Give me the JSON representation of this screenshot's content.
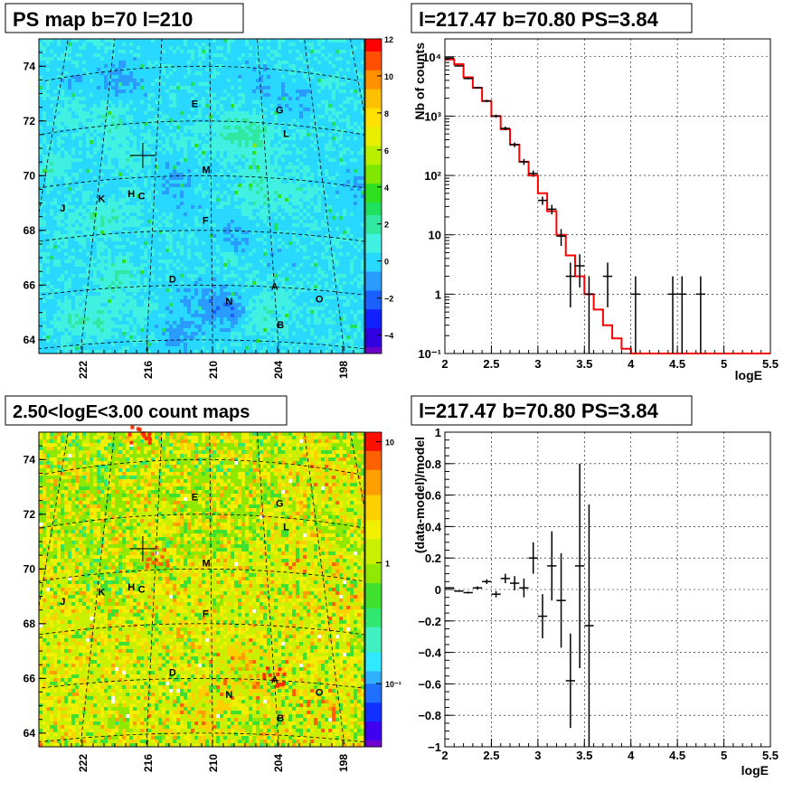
{
  "panels": {
    "ps_map": {
      "title": "PS map b=70 l=210",
      "ytick_labels": [
        "64",
        "66",
        "68",
        "70",
        "72",
        "74"
      ],
      "xtick_labels": [
        "222",
        "216",
        "210",
        "204",
        "198"
      ],
      "colorbar_labels": [
        "12",
        "10",
        "8",
        "6",
        "4",
        "2",
        "0",
        "−2",
        "−4"
      ],
      "colorbar_range": [
        -5,
        12
      ]
    },
    "count_map": {
      "title": "2.50<logE<3.00 count maps",
      "ytick_labels": [
        "64",
        "66",
        "68",
        "70",
        "72",
        "74"
      ],
      "xtick_labels": [
        "222",
        "216",
        "210",
        "204",
        "198"
      ],
      "colorbar_labels": [
        "10",
        "1",
        "10⁻¹"
      ]
    },
    "spectrum": {
      "title": "l=217.47 b=70.80 PS=3.84",
      "ylabel": "Nb of counts",
      "xlabel": "logE",
      "xtick_labels": [
        "2",
        "2.5",
        "3",
        "3.5",
        "4",
        "4.5",
        "5",
        "5.5"
      ],
      "ytick_labels": [
        "10⁻¹",
        "1",
        "10",
        "10²",
        "10³",
        "10⁴"
      ]
    },
    "residual": {
      "title": "l=217.47 b=70.80 PS=3.84",
      "ylabel": "(data-model)/model",
      "xlabel": "logE",
      "xtick_labels": [
        "2",
        "2.5",
        "3",
        "3.5",
        "4",
        "4.5",
        "5",
        "5.5"
      ],
      "ytick_labels": [
        "1",
        "0.8",
        "0.6",
        "0.4",
        "0.2",
        "0",
        "−0.2",
        "−0.4",
        "−0.6",
        "−0.8",
        "−1"
      ]
    }
  },
  "map_source_labels": [
    {
      "text": "E",
      "l": 211.8,
      "b": 72.5
    },
    {
      "text": "G",
      "l": 202.0,
      "b": 72.4
    },
    {
      "text": "L",
      "l": 201.5,
      "b": 71.55
    },
    {
      "text": "M",
      "l": 210.5,
      "b": 70.1
    },
    {
      "text": "J",
      "l": 225.5,
      "b": 69.0
    },
    {
      "text": "K",
      "l": 221.5,
      "b": 69.2
    },
    {
      "text": "H",
      "l": 218.4,
      "b": 69.3
    },
    {
      "text": "C",
      "l": 217.3,
      "b": 69.2
    },
    {
      "text": "F",
      "l": 210.6,
      "b": 68.25
    },
    {
      "text": "D",
      "l": 213.8,
      "b": 66.1
    },
    {
      "text": "A",
      "l": 204.0,
      "b": 65.9
    },
    {
      "text": "O",
      "l": 199.8,
      "b": 65.55
    },
    {
      "text": "N",
      "l": 208.4,
      "b": 65.3
    },
    {
      "text": "B",
      "l": 203.7,
      "b": 64.5
    }
  ],
  "chart_data": [
    {
      "type": "heatmap",
      "title": "PS map b=70 l=210",
      "description_units": "galactic longitude (deg) vs latitude (deg)",
      "xlim": [
        226,
        196
      ],
      "ylim": [
        63.5,
        75
      ],
      "zlim": [
        -5,
        12
      ],
      "marker": {
        "l": 217.47,
        "b": 70.8
      }
    },
    {
      "type": "heatmap",
      "title": "2.50<logE<3.00 count maps",
      "xlim": [
        226,
        196
      ],
      "ylim": [
        63.5,
        75
      ],
      "zlim": [
        0.03,
        12
      ],
      "zscale": "log",
      "marker": {
        "l": 217.47,
        "b": 70.8
      }
    },
    {
      "type": "line",
      "title": "l=217.47 b=70.80 PS=3.84",
      "xlabel": "logE",
      "ylabel": "Nb of counts",
      "xlim": [
        2,
        5.5
      ],
      "ylim": [
        0.1,
        20000
      ],
      "yscale": "log",
      "grid": true,
      "model_color": "#ff0000",
      "model_bin_width": 0.1,
      "model_bin_start": 2.0,
      "model": [
        9000,
        7500,
        4500,
        3000,
        1800,
        1000,
        600,
        330,
        170,
        100,
        50,
        25,
        10,
        4.5,
        2,
        1,
        0.55,
        0.3,
        0.18,
        0.12,
        0.1,
        0.1,
        0.1,
        0.1,
        0.1,
        0.1,
        0.1,
        0.1,
        0.1,
        0.1,
        0.1,
        0.1,
        0.1,
        0.1,
        0.1
      ],
      "data": [
        {
          "x": 2.05,
          "y": 9500,
          "lo": 9300,
          "hi": 9700
        },
        {
          "x": 2.15,
          "y": 7000,
          "lo": 6850,
          "hi": 7150
        },
        {
          "x": 2.25,
          "y": 4300,
          "lo": 4170,
          "hi": 4430
        },
        {
          "x": 2.35,
          "y": 3000,
          "lo": 2900,
          "hi": 3100
        },
        {
          "x": 2.45,
          "y": 1800,
          "lo": 1720,
          "hi": 1880
        },
        {
          "x": 2.55,
          "y": 1000,
          "lo": 940,
          "hi": 1060
        },
        {
          "x": 2.65,
          "y": 620,
          "lo": 575,
          "hi": 665
        },
        {
          "x": 2.75,
          "y": 330,
          "lo": 300,
          "hi": 360
        },
        {
          "x": 2.85,
          "y": 170,
          "lo": 150,
          "hi": 190
        },
        {
          "x": 2.95,
          "y": 108,
          "lo": 95,
          "hi": 121
        },
        {
          "x": 3.05,
          "y": 38,
          "lo": 32,
          "hi": 44
        },
        {
          "x": 3.15,
          "y": 27,
          "lo": 22,
          "hi": 32
        },
        {
          "x": 3.25,
          "y": 9.5,
          "lo": 6.5,
          "hi": 12.5
        },
        {
          "x": 3.35,
          "y": 2,
          "lo": 0.6,
          "hi": 3.4
        },
        {
          "x": 3.45,
          "y": 3,
          "lo": 1.3,
          "hi": 4.7
        },
        {
          "x": 3.55,
          "y": 1,
          "lo": 0.1,
          "hi": 2
        },
        {
          "x": 3.75,
          "y": 2,
          "lo": 0.6,
          "hi": 3.4
        },
        {
          "x": 4.05,
          "y": 1,
          "lo": 0.1,
          "hi": 2
        },
        {
          "x": 4.45,
          "y": 1,
          "lo": 0.1,
          "hi": 2
        },
        {
          "x": 4.55,
          "y": 1,
          "lo": 0.1,
          "hi": 2
        },
        {
          "x": 4.75,
          "y": 1,
          "lo": 0.1,
          "hi": 2
        }
      ]
    },
    {
      "type": "scatter",
      "title": "l=217.47 b=70.80 PS=3.84",
      "xlabel": "logE",
      "ylabel": "(data-model)/model",
      "xlim": [
        2,
        5.5
      ],
      "ylim": [
        -1,
        1
      ],
      "grid": true,
      "data": [
        {
          "x": 2.05,
          "y": 0.01,
          "err": 0.005
        },
        {
          "x": 2.15,
          "y": -0.01,
          "err": 0.005
        },
        {
          "x": 2.25,
          "y": -0.02,
          "err": 0.006
        },
        {
          "x": 2.35,
          "y": 0.01,
          "err": 0.01
        },
        {
          "x": 2.45,
          "y": 0.05,
          "err": 0.015
        },
        {
          "x": 2.55,
          "y": -0.03,
          "err": 0.02
        },
        {
          "x": 2.65,
          "y": 0.07,
          "err": 0.03
        },
        {
          "x": 2.75,
          "y": 0.04,
          "err": 0.045
        },
        {
          "x": 2.85,
          "y": 0.01,
          "err": 0.06
        },
        {
          "x": 2.95,
          "y": 0.2,
          "err": 0.1
        },
        {
          "x": 3.05,
          "y": -0.17,
          "err": 0.14
        },
        {
          "x": 3.15,
          "y": 0.15,
          "err": 0.22
        },
        {
          "x": 3.25,
          "y": -0.07,
          "err": 0.3
        },
        {
          "x": 3.35,
          "y": -0.58,
          "err": 0.3
        },
        {
          "x": 3.45,
          "y": 0.15,
          "err": 0.65
        },
        {
          "x": 3.55,
          "y": -0.23,
          "err": 0.77
        }
      ]
    }
  ]
}
